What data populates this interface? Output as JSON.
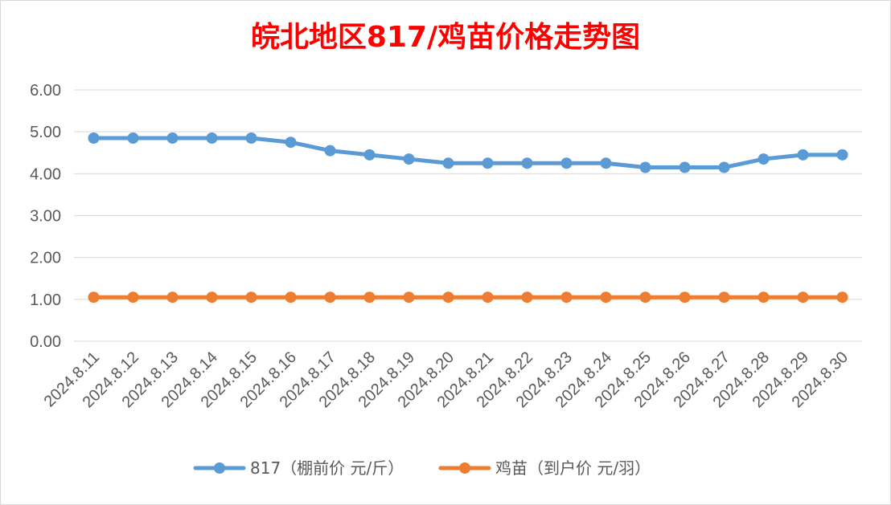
{
  "chart_data": {
    "type": "line",
    "title": "皖北地区817/鸡苗价格走势图",
    "xlabel": "",
    "ylabel": "",
    "ylim": [
      0,
      6
    ],
    "yticks": [
      "0.00",
      "1.00",
      "2.00",
      "3.00",
      "4.00",
      "5.00",
      "6.00"
    ],
    "categories": [
      "2024.8.11",
      "2024.8.12",
      "2024.8.13",
      "2024.8.14",
      "2024.8.15",
      "2024.8.16",
      "2024.8.17",
      "2024.8.18",
      "2024.8.19",
      "2024.8.20",
      "2024.8.21",
      "2024.8.22",
      "2024.8.23",
      "2024.8.24",
      "2024.8.25",
      "2024.8.26",
      "2024.8.27",
      "2024.8.28",
      "2024.8.29",
      "2024.8.30"
    ],
    "series": [
      {
        "name": "817（棚前价 元/斤）",
        "color": "#5b9bd5",
        "values": [
          4.85,
          4.85,
          4.85,
          4.85,
          4.85,
          4.75,
          4.55,
          4.45,
          4.35,
          4.25,
          4.25,
          4.25,
          4.25,
          4.25,
          4.15,
          4.15,
          4.15,
          4.35,
          4.45,
          4.45
        ]
      },
      {
        "name": "鸡苗（到户价 元/羽）",
        "color": "#ed7d31",
        "values": [
          1.05,
          1.05,
          1.05,
          1.05,
          1.05,
          1.05,
          1.05,
          1.05,
          1.05,
          1.05,
          1.05,
          1.05,
          1.05,
          1.05,
          1.05,
          1.05,
          1.05,
          1.05,
          1.05,
          1.05
        ]
      }
    ],
    "grid": true,
    "legend_position": "bottom"
  }
}
